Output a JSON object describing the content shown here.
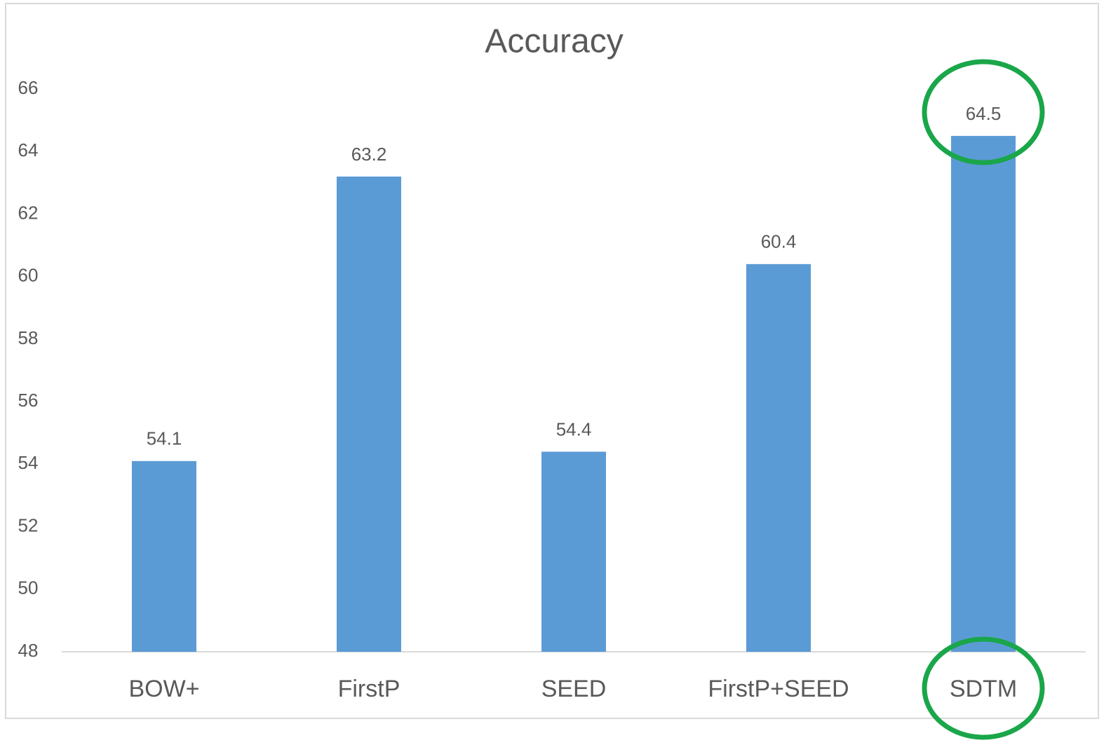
{
  "chart_data": {
    "type": "bar",
    "title": "Accuracy",
    "categories": [
      "BOW+",
      "FirstP",
      "SEED",
      "FirstP+SEED",
      "SDTM"
    ],
    "values": [
      54.1,
      63.2,
      54.4,
      60.4,
      64.5
    ],
    "color": "#5b9bd5",
    "ylim": [
      48,
      66
    ],
    "yticks": [
      48,
      50,
      52,
      54,
      56,
      58,
      60,
      62,
      64,
      66
    ],
    "grid": false
  }
}
